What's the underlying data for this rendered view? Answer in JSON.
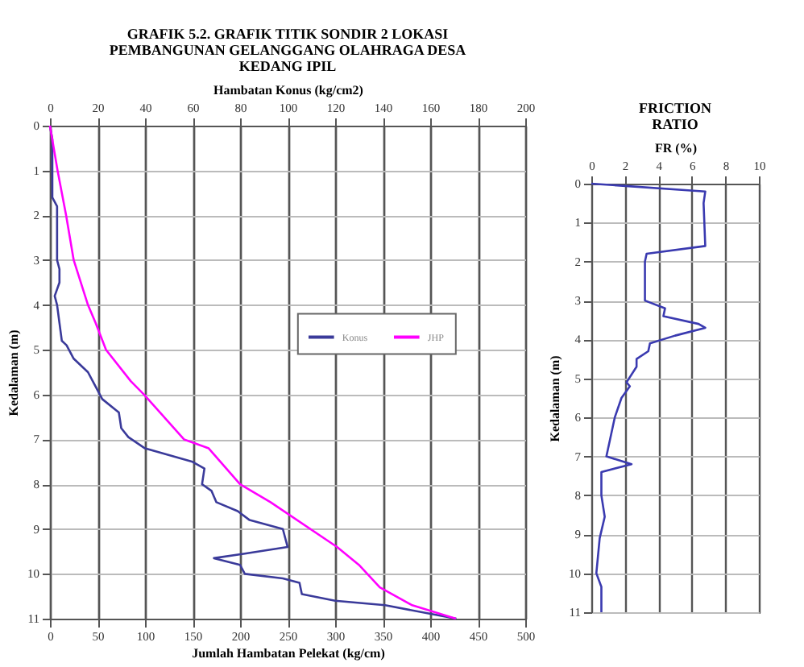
{
  "chart_data": [
    {
      "type": "line",
      "title": "GRAFIK 5.2. GRAFIK TITIK SONDIR 2 LOKASI PEMBANGUNAN GELANGGANG OLAHRAGA DESA KEDANG IPIL",
      "xlabel": "Jumlah Hambatan Pelekat (kg/cm)",
      "x2label": "Hambatan Konus (kg/cm2)",
      "ylabel": "Kedalaman (m)",
      "xlim": [
        0,
        500
      ],
      "xticks": [
        0,
        50,
        100,
        150,
        200,
        250,
        300,
        350,
        400,
        450,
        500
      ],
      "x2lim": [
        0,
        200
      ],
      "x2ticks": [
        0,
        20,
        40,
        60,
        80,
        100,
        120,
        140,
        160,
        180,
        200
      ],
      "ylim": [
        11,
        0
      ],
      "yticks": [
        0,
        1,
        2,
        3,
        4,
        5,
        6,
        7,
        8,
        9,
        10,
        11
      ],
      "grid": true,
      "legend": "right",
      "series": [
        {
          "name": "Konus",
          "color": "#3a3a9a",
          "axis": "x2",
          "values": [
            0,
            0.3,
            1.6,
            1.8,
            2,
            3,
            3.2,
            3.5,
            3.8,
            4,
            4.4,
            4.8,
            4.9,
            5.2,
            5.5,
            5.7,
            6.1,
            6.4,
            6.75,
            6.95,
            7.2,
            7.5,
            7.65,
            8,
            8.15,
            8.4,
            8.6,
            8.8,
            9,
            9.4,
            9.55,
            9.65,
            9.8,
            10,
            10.1,
            10.2,
            10.45,
            10.6,
            10.7,
            11
          ],
          "x": [
            0,
            1,
            1,
            3,
            3,
            3,
            4,
            4,
            2,
            3,
            4,
            5,
            7,
            10,
            16,
            18,
            22,
            29,
            30,
            33,
            40,
            60,
            65,
            64,
            68,
            70,
            79,
            84,
            98,
            100,
            82,
            69,
            80,
            82,
            98,
            105,
            106,
            120,
            141,
            171
          ]
        },
        {
          "name": "JHP",
          "color": "#ff00ff",
          "values": [
            0,
            1,
            2,
            3,
            4,
            4.4,
            5,
            5.7,
            6,
            7,
            7.2,
            8,
            8.4,
            9.4,
            9.8,
            10.3,
            10.7,
            11
          ],
          "x": [
            0,
            8,
            17,
            25,
            40,
            48,
            59,
            85,
            99,
            141,
            167,
            200,
            232,
            302,
            325,
            347,
            381,
            427
          ]
        }
      ]
    },
    {
      "type": "line",
      "title": "FRICTION RATIO",
      "xlabel": "FR (%)",
      "ylabel": "Kedalaman (m)",
      "xlim": [
        0,
        10
      ],
      "xticks": [
        0,
        2,
        4,
        6,
        8,
        10
      ],
      "ylim": [
        11,
        0
      ],
      "yticks": [
        0,
        1,
        2,
        3,
        4,
        5,
        6,
        7,
        8,
        9,
        10,
        11
      ],
      "grid": true,
      "series": [
        {
          "color": "#3a3ab0",
          "values": [
            0,
            0.2,
            0.5,
            1.6,
            1.8,
            2,
            3,
            3.2,
            3.4,
            3.6,
            3.7,
            3.9,
            4.1,
            4.3,
            4.5,
            4.7,
            5.1,
            5.2,
            5.5,
            6,
            6.6,
            7,
            7.2,
            7.4,
            8,
            8.55,
            9.1,
            10,
            10.35,
            11
          ],
          "x": [
            0,
            6.8,
            6.7,
            6.8,
            3.3,
            3.2,
            3.2,
            4.4,
            4.3,
            6.4,
            6.8,
            5,
            3.5,
            3.4,
            2.7,
            2.7,
            2.1,
            2.3,
            1.8,
            1.4,
            1.1,
            0.9,
            2.4,
            0.6,
            0.6,
            0.8,
            0.5,
            0.3,
            0.6,
            0.6
          ]
        }
      ]
    }
  ]
}
